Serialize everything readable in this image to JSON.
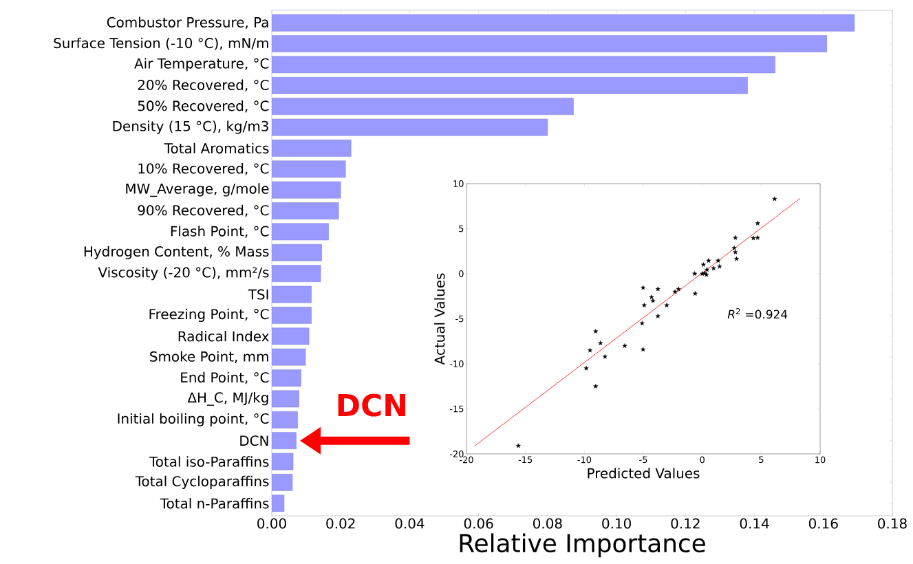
{
  "chart_data": [
    {
      "type": "bar",
      "orientation": "horizontal",
      "color": "#9999ff",
      "xlabel": "Relative Importance",
      "xlim": [
        0,
        0.18
      ],
      "xticks": [
        {
          "value": 0,
          "label": "0.00"
        },
        {
          "value": 0.02,
          "label": "0.02"
        },
        {
          "value": 0.04,
          "label": "0.04"
        },
        {
          "value": 0.06,
          "label": "0.06"
        },
        {
          "value": 0.08,
          "label": "0.08"
        },
        {
          "value": 0.1,
          "label": "0.10"
        },
        {
          "value": 0.12,
          "label": "0.12"
        },
        {
          "value": 0.14,
          "label": "0.14"
        },
        {
          "value": 0.16,
          "label": "0.16"
        },
        {
          "value": 0.18,
          "label": "0.18"
        }
      ],
      "categories": [
        "Combustor Pressure, Pa",
        "Surface Tension (-10 °C), mN/m",
        "Air Temperature, °C",
        "20% Recovered, °C",
        "50% Recovered, °C",
        "Density (15 °C), kg/m3",
        "Total Aromatics",
        "10% Recovered, °C",
        "MW_Average, g/mole",
        "90% Recovered, °C",
        "Flash Point, °C",
        "Hydrogen Content, % Mass",
        "Viscosity (-20 °C), mm²/s",
        "TSI",
        "Freezing Point, °C",
        "Radical Index",
        "Smoke Point, mm",
        "End Point, °C",
        "ΔH_C, MJ/kg",
        "Initial boiling point, °C",
        "DCN",
        "Total iso-Paraffins",
        "Total Cycloparaffins",
        "Total n-Paraffins"
      ],
      "values": [
        0.169,
        0.161,
        0.146,
        0.138,
        0.0875,
        0.08,
        0.023,
        0.0214,
        0.02,
        0.0194,
        0.0165,
        0.0145,
        0.0142,
        0.0115,
        0.0115,
        0.0108,
        0.0098,
        0.0085,
        0.0079,
        0.0075,
        0.0071,
        0.0062,
        0.006,
        0.0036
      ],
      "annotations": [
        "DCN"
      ]
    },
    {
      "type": "scatter",
      "xlabel": "Predicted Values",
      "ylabel": "Actual Values",
      "xlim": [
        -20,
        10
      ],
      "ylim": [
        -20,
        10
      ],
      "xticks": [
        -20,
        -15,
        -10,
        -5,
        0,
        5,
        10
      ],
      "yticks": [
        -20,
        -15,
        -10,
        -5,
        0,
        5,
        10
      ],
      "series": [
        {
          "type": "scatter",
          "marker": "star",
          "color": "#000000",
          "x": [
            -15.6,
            -9.84,
            -9.04,
            -9.52,
            -9.04,
            -8.63,
            -8.25,
            -6.57,
            -5.02,
            -4.92,
            -5.1,
            -5.02,
            -4.3,
            -4.18,
            -3.76,
            -3.76,
            -3.01,
            -2.31,
            -2.01,
            -0.64,
            -0.6,
            0,
            0.1,
            0.2,
            0.36,
            0.4,
            0.54,
            0.96,
            1.35,
            1.47,
            2.71,
            2.81,
            2.81,
            2.91,
            4.34,
            4.7,
            4.7,
            6.14
          ],
          "values": [
            -19.1,
            -10.5,
            -12.5,
            -8.5,
            -6.4,
            -7.7,
            -9.2,
            -8.0,
            -1.55,
            -3.5,
            -5.5,
            -8.4,
            -2.6,
            -3.0,
            -1.7,
            -4.7,
            -3.5,
            -2.0,
            -1.7,
            0,
            -2.2,
            0,
            1.0,
            0.05,
            -0.1,
            0.45,
            1.45,
            0.6,
            1.45,
            0.8,
            2.85,
            4.0,
            2.4,
            1.65,
            3.95,
            4.0,
            5.6,
            8.3
          ]
        },
        {
          "type": "line",
          "marker": "none",
          "color": "#ff0000",
          "x": [
            -19.3,
            8.3
          ],
          "values": [
            -19.1,
            8.35
          ]
        }
      ],
      "annotations": [
        "*R*$^{2}$ =0.924"
      ]
    }
  ]
}
